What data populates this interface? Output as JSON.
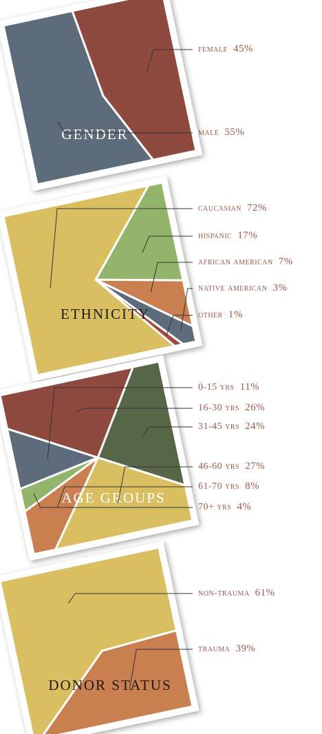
{
  "chart_data": [
    {
      "type": "pie",
      "title": "GENDER",
      "title_color": "#ffffff",
      "categories": [
        "female",
        "male"
      ],
      "values": [
        45,
        55
      ],
      "value_labels": [
        "45%",
        "55%"
      ],
      "colors": [
        "#8e4a3e",
        "#5d6b7a"
      ]
    },
    {
      "type": "pie",
      "title": "ETHNICITY",
      "title_color": "#1e1a14",
      "categories": [
        "caucasian",
        "hispanic",
        "african american",
        "native american",
        "other"
      ],
      "values": [
        72,
        17,
        7,
        3,
        1
      ],
      "value_labels": [
        "72%",
        "17%",
        "7%",
        "3%",
        "1%"
      ],
      "colors": [
        "#d9bf62",
        "#93b46b",
        "#c97f4f",
        "#5d6b7a",
        "#a34a3c"
      ]
    },
    {
      "type": "pie",
      "title": "AGE GROUPS",
      "title_color": "#ffffff",
      "categories": [
        "0-15 yrs",
        "16-30 yrs",
        "31-45 yrs",
        "46-60 yrs",
        "61-70 yrs",
        "70+ yrs"
      ],
      "values": [
        11,
        26,
        24,
        27,
        8,
        4
      ],
      "value_labels": [
        "11%",
        "26%",
        "24%",
        "27%",
        "8%",
        "4%"
      ],
      "colors": [
        "#5d6b7a",
        "#8e4a3e",
        "#576646",
        "#d9bf62",
        "#c97f4f",
        "#93b46b"
      ]
    },
    {
      "type": "pie",
      "title": "DONOR STATUS",
      "title_color": "#1e1a14",
      "categories": [
        "non-trauma",
        "trauma"
      ],
      "values": [
        61,
        39
      ],
      "value_labels": [
        "61%",
        "39%"
      ],
      "colors": [
        "#d9bf62",
        "#c97f4f"
      ]
    }
  ]
}
